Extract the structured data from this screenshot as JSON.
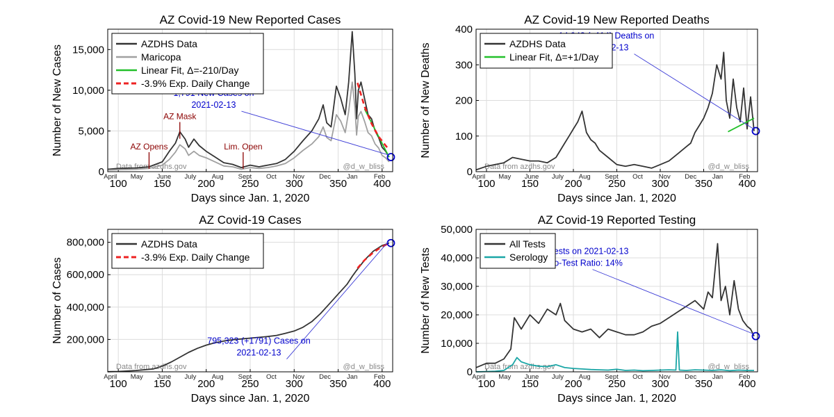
{
  "chart_data": [
    {
      "type": "line",
      "title": "AZ Covid-19 New Reported Cases",
      "xlabel": "Days since Jan. 1, 2020",
      "ylabel": "Number of New Cases",
      "xlim": [
        88,
        412
      ],
      "ylim": [
        0,
        17500
      ],
      "xticks": [
        100,
        150,
        200,
        250,
        300,
        350,
        400
      ],
      "yticks": [
        0,
        5000,
        10000,
        15000
      ],
      "ytick_labels": [
        "0",
        "5,000",
        "10,000",
        "15,000"
      ],
      "months": [
        {
          "label": "April",
          "day": 91
        },
        {
          "label": "May",
          "day": 121
        },
        {
          "label": "June",
          "day": 152
        },
        {
          "label": "July",
          "day": 182
        },
        {
          "label": "Aug",
          "day": 213
        },
        {
          "label": "Sept",
          "day": 244
        },
        {
          "label": "Oct",
          "day": 274
        },
        {
          "label": "Nov",
          "day": 305
        },
        {
          "label": "Dec",
          "day": 335
        },
        {
          "label": "Jan",
          "day": 366
        },
        {
          "label": "Feb",
          "day": 397
        }
      ],
      "legend_position": "top-left",
      "grid": true,
      "series": [
        {
          "name": "AZDHS Data",
          "color": "#333333",
          "style": "solid",
          "x": [
            88,
            100,
            120,
            135,
            150,
            158,
            165,
            170,
            176,
            180,
            186,
            192,
            200,
            210,
            220,
            230,
            240,
            250,
            260,
            270,
            280,
            290,
            300,
            310,
            320,
            328,
            333,
            337,
            342,
            348,
            353,
            358,
            362,
            366,
            369,
            371,
            373,
            376,
            380,
            384,
            388,
            392,
            396,
            400,
            404,
            408
          ],
          "y": [
            300,
            400,
            450,
            600,
            1200,
            2500,
            3500,
            4900,
            4000,
            3000,
            4000,
            3200,
            2500,
            1800,
            1100,
            900,
            500,
            800,
            600,
            800,
            1000,
            1500,
            2500,
            3800,
            5000,
            6500,
            8200,
            6000,
            5500,
            10500,
            9000,
            7000,
            11000,
            17200,
            12000,
            6500,
            10000,
            11000,
            9000,
            7000,
            6500,
            5000,
            4200,
            3000,
            2500,
            1791
          ]
        },
        {
          "name": "Maricopa",
          "color": "#a0a0a0",
          "style": "solid",
          "x": [
            88,
            100,
            120,
            135,
            150,
            158,
            165,
            170,
            176,
            180,
            186,
            192,
            200,
            210,
            220,
            230,
            240,
            250,
            260,
            270,
            280,
            290,
            300,
            310,
            320,
            328,
            333,
            337,
            342,
            348,
            353,
            358,
            362,
            366,
            369,
            371,
            373,
            376,
            380,
            384,
            388,
            392,
            396,
            400,
            404,
            408
          ],
          "y": [
            200,
            250,
            300,
            400,
            800,
            1500,
            2400,
            3300,
            2800,
            2000,
            2500,
            2000,
            1700,
            1200,
            700,
            600,
            300,
            500,
            400,
            500,
            700,
            1000,
            1700,
            2600,
            3400,
            4300,
            5500,
            4200,
            3800,
            7000,
            6200,
            4800,
            7400,
            11000,
            8000,
            4500,
            6800,
            7400,
            6200,
            4800,
            4400,
            3400,
            2900,
            2000,
            1700,
            1200
          ]
        },
        {
          "name": "Linear Fit, Δ=-210/Day",
          "color": "#22c02a",
          "style": "solid",
          "x": [
            380,
            408
          ],
          "y": [
            7700,
            1791
          ]
        },
        {
          "name": "-3.9% Exp. Daily Change",
          "color": "#ee2222",
          "style": "dashed",
          "x": [
            372,
            380,
            388,
            396,
            404,
            408
          ],
          "y": [
            10900,
            8000,
            5900,
            4300,
            3200,
            2700
          ]
        }
      ],
      "events": [
        {
          "label": "AZ Opens",
          "day": 135,
          "value": 1200
        },
        {
          "label": "AZ Mask",
          "day": 170,
          "value": 4900
        },
        {
          "label": "Lim. Open",
          "day": 242,
          "value": 1200
        }
      ],
      "annotation": {
        "line1": "1,791 New Cases on",
        "line2": "2021-02-13",
        "x": 410,
        "y": 1791
      },
      "credit_left": "Data from azdhs.gov",
      "credit_right": "@d_w_bliss"
    },
    {
      "type": "line",
      "title": "AZ Covid-19 New Reported Deaths",
      "xlabel": "Days since Jan. 1, 2020",
      "ylabel": "Number of New Deaths",
      "xlim": [
        88,
        412
      ],
      "ylim": [
        0,
        400
      ],
      "xticks": [
        100,
        150,
        200,
        250,
        300,
        350,
        400
      ],
      "yticks": [
        0,
        100,
        200,
        300,
        400
      ],
      "ytick_labels": [
        "0",
        "100",
        "200",
        "300",
        "400"
      ],
      "months": [
        {
          "label": "April",
          "day": 91
        },
        {
          "label": "May",
          "day": 121
        },
        {
          "label": "June",
          "day": 152
        },
        {
          "label": "July",
          "day": 182
        },
        {
          "label": "Aug",
          "day": 213
        },
        {
          "label": "Sept",
          "day": 244
        },
        {
          "label": "Oct",
          "day": 274
        },
        {
          "label": "Nov",
          "day": 305
        },
        {
          "label": "Dec",
          "day": 335
        },
        {
          "label": "Jan",
          "day": 366
        },
        {
          "label": "Feb",
          "day": 397
        }
      ],
      "legend_position": "top-left",
      "grid": true,
      "series": [
        {
          "name": "AZDHS Data",
          "color": "#333333",
          "style": "solid",
          "x": [
            88,
            100,
            110,
            120,
            130,
            140,
            150,
            160,
            170,
            180,
            190,
            195,
            200,
            205,
            210,
            215,
            220,
            225,
            230,
            240,
            250,
            260,
            270,
            280,
            290,
            300,
            310,
            320,
            330,
            335,
            340,
            345,
            350,
            355,
            360,
            365,
            370,
            373,
            376,
            380,
            384,
            388,
            392,
            396,
            400,
            404,
            408
          ],
          "y": [
            5,
            15,
            20,
            25,
            40,
            35,
            30,
            30,
            25,
            40,
            80,
            100,
            120,
            140,
            170,
            110,
            90,
            80,
            60,
            40,
            20,
            15,
            20,
            15,
            10,
            20,
            30,
            50,
            70,
            80,
            110,
            130,
            150,
            180,
            220,
            300,
            260,
            335,
            200,
            150,
            260,
            180,
            140,
            235,
            120,
            210,
            114
          ]
        },
        {
          "name": "Linear Fit, Δ=+1/Day",
          "color": "#22c02a",
          "style": "solid",
          "x": [
            378,
            408
          ],
          "y": [
            112,
            150
          ]
        }
      ],
      "annotation": {
        "line1": "14,948 (+114) Deaths on",
        "line2": "2021-02-13",
        "x": 410,
        "y": 114
      },
      "credit_left": "Data from azdhs.gov",
      "credit_right": "@d_w_bliss"
    },
    {
      "type": "line",
      "title": "AZ Covid-19 Cases",
      "xlabel": "Days since Jan. 1, 2020",
      "ylabel": "Number of Cases",
      "xlim": [
        88,
        412
      ],
      "ylim": [
        0,
        880000
      ],
      "xticks": [
        100,
        150,
        200,
        250,
        300,
        350,
        400
      ],
      "yticks": [
        200000,
        400000,
        600000,
        800000
      ],
      "ytick_labels": [
        "200,000",
        "400,000",
        "600,000",
        "800,000"
      ],
      "months": [
        {
          "label": "April",
          "day": 91
        },
        {
          "label": "May",
          "day": 121
        },
        {
          "label": "June",
          "day": 152
        },
        {
          "label": "July",
          "day": 182
        },
        {
          "label": "Aug",
          "day": 213
        },
        {
          "label": "Sept",
          "day": 244
        },
        {
          "label": "Oct",
          "day": 274
        },
        {
          "label": "Nov",
          "day": 305
        },
        {
          "label": "Dec",
          "day": 335
        },
        {
          "label": "Jan",
          "day": 366
        },
        {
          "label": "Feb",
          "day": 397
        }
      ],
      "legend_position": "top-left",
      "grid": true,
      "series": [
        {
          "name": "AZDHS Data",
          "color": "#333333",
          "style": "solid",
          "x": [
            88,
            100,
            120,
            140,
            150,
            160,
            170,
            180,
            190,
            200,
            210,
            220,
            230,
            240,
            250,
            260,
            270,
            280,
            290,
            300,
            310,
            320,
            330,
            340,
            350,
            360,
            366,
            370,
            380,
            390,
            400,
            408
          ],
          "y": [
            1000,
            2000,
            8000,
            18000,
            35000,
            60000,
            90000,
            120000,
            145000,
            165000,
            180000,
            190000,
            198000,
            203000,
            208000,
            213000,
            218000,
            225000,
            238000,
            252000,
            275000,
            310000,
            360000,
            420000,
            480000,
            540000,
            590000,
            620000,
            690000,
            745000,
            780000,
            795323
          ]
        },
        {
          "name": "-3.9% Exp. Daily Change",
          "color": "#ee2222",
          "style": "dashed",
          "x": [
            372,
            380,
            388,
            396,
            404,
            408
          ],
          "y": [
            640000,
            690000,
            728000,
            760000,
            784000,
            795323
          ]
        }
      ],
      "annotation": {
        "line1": "795,323 (+1791) Cases on",
        "line2": "2021-02-13",
        "x": 410,
        "y": 795323
      },
      "credit_left": "Data from azdhs.gov",
      "credit_right": "@d_w_bliss"
    },
    {
      "type": "line",
      "title": "AZ Covid-19 Reported Testing",
      "xlabel": "Days since Jan. 1, 2020",
      "ylabel": "Number of New Tests",
      "xlim": [
        88,
        412
      ],
      "ylim": [
        0,
        50000
      ],
      "xticks": [
        100,
        150,
        200,
        250,
        300,
        350,
        400
      ],
      "yticks": [
        0,
        10000,
        20000,
        30000,
        40000,
        50000
      ],
      "ytick_labels": [
        "0",
        "10,000",
        "20,000",
        "30,000",
        "40,000",
        "50,000"
      ],
      "months": [
        {
          "label": "April",
          "day": 91
        },
        {
          "label": "May",
          "day": 121
        },
        {
          "label": "June",
          "day": 152
        },
        {
          "label": "July",
          "day": 182
        },
        {
          "label": "Aug",
          "day": 213
        },
        {
          "label": "Sept",
          "day": 244
        },
        {
          "label": "Oct",
          "day": 274
        },
        {
          "label": "Nov",
          "day": 305
        },
        {
          "label": "Dec",
          "day": 335
        },
        {
          "label": "Jan",
          "day": 366
        },
        {
          "label": "Feb",
          "day": 397
        }
      ],
      "legend_position": "top-left",
      "grid": true,
      "series": [
        {
          "name": "All Tests",
          "color": "#333333",
          "style": "solid",
          "x": [
            88,
            100,
            110,
            120,
            128,
            132,
            140,
            150,
            160,
            170,
            180,
            185,
            190,
            200,
            210,
            220,
            230,
            240,
            250,
            260,
            270,
            280,
            290,
            300,
            310,
            320,
            330,
            340,
            350,
            355,
            360,
            366,
            370,
            375,
            380,
            385,
            390,
            395,
            400,
            404,
            408
          ],
          "y": [
            1500,
            3000,
            3000,
            4500,
            8000,
            19000,
            15000,
            20000,
            17000,
            22000,
            20000,
            24000,
            18000,
            15000,
            14000,
            15000,
            12000,
            15000,
            14000,
            13000,
            13000,
            14000,
            16000,
            17000,
            19000,
            21000,
            23000,
            25000,
            22000,
            28000,
            26000,
            45000,
            25000,
            30000,
            20000,
            32000,
            22000,
            18000,
            16000,
            15000,
            12526
          ]
        },
        {
          "name": "Serology",
          "color": "#1aa6a6",
          "style": "solid",
          "x": [
            88,
            100,
            110,
            120,
            130,
            135,
            140,
            150,
            160,
            170,
            180,
            190,
            200,
            210,
            220,
            230,
            240,
            250,
            260,
            270,
            280,
            290,
            300,
            310,
            318,
            320,
            322,
            330,
            340,
            350,
            360,
            370,
            380,
            390,
            400,
            408
          ],
          "y": [
            0,
            100,
            200,
            500,
            2500,
            5000,
            3500,
            2500,
            2000,
            1800,
            2500,
            1500,
            1200,
            1000,
            800,
            700,
            600,
            900,
            500,
            600,
            400,
            500,
            600,
            700,
            600,
            14000,
            600,
            500,
            700,
            600,
            500,
            700,
            400,
            600,
            500,
            500
          ]
        }
      ],
      "annotation": {
        "line1": "12,526 New Tests on 2021-02-13",
        "line2": "Daily Case-to-Test Ratio: 14%",
        "x": 410,
        "y": 12526
      },
      "credit_left": "Data from azdhs.gov",
      "credit_right": "@d_w_bliss"
    }
  ]
}
